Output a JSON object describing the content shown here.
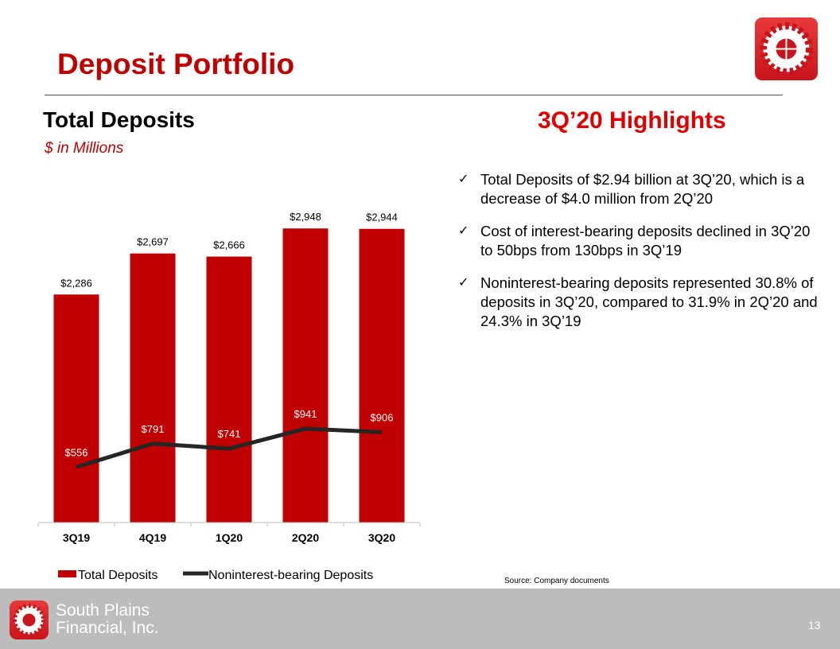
{
  "header": {
    "title": "Deposit Portfolio"
  },
  "chart_header": {
    "title": "Total Deposits",
    "subtitle": "$ in Millions"
  },
  "highlights": {
    "title": "3Q’20 Highlights",
    "items": [
      "Total Deposits of $2.94 billion at 3Q’20, which is a decrease of $4.0 million from 2Q’20",
      "Cost of interest-bearing deposits declined in 3Q’20 to 50bps from 130bps in 3Q’19",
      "Noninterest-bearing deposits represented 30.8% of deposits in 3Q’20, compared to 31.9% in 2Q’20 and 24.3% in 3Q’19"
    ],
    "check_icon": "✓"
  },
  "source": "Source: Company documents",
  "footer": {
    "company_line1": "South Plains",
    "company_line2": "Financial, Inc.",
    "page_number": "13"
  },
  "colors": {
    "accent": "#c00000",
    "line": "#262626",
    "footer": "#bcbcbc"
  },
  "chart_data": {
    "type": "bar+line",
    "categories": [
      "3Q19",
      "4Q19",
      "1Q20",
      "2Q20",
      "3Q20"
    ],
    "series": [
      {
        "name": "Total Deposits",
        "type": "bar",
        "values": [
          2286,
          2697,
          2666,
          2948,
          2944
        ],
        "labels": [
          "$2,286",
          "$2,697",
          "$2,666",
          "$2,948",
          "$2,944"
        ],
        "color": "#c00000"
      },
      {
        "name": "Noninterest-bearing Deposits",
        "type": "line",
        "values": [
          556,
          791,
          741,
          941,
          906
        ],
        "labels": [
          "$556",
          "$791",
          "$741",
          "$941",
          "$906"
        ],
        "color": "#262626"
      }
    ],
    "ylim": [
      0,
      3500
    ],
    "grid": false,
    "legend": "bottom"
  }
}
